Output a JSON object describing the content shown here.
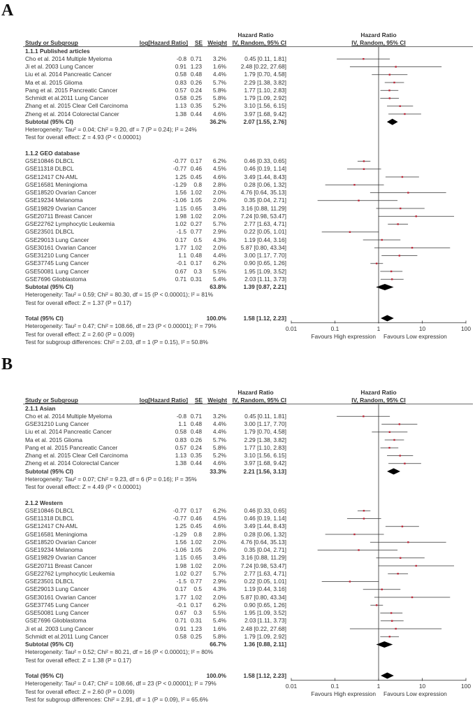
{
  "panels": [
    {
      "label": "A",
      "headers": {
        "study": "Study or Subgroup",
        "loghr": "log[Hazard Ratio]",
        "se": "SE",
        "weight": "Weight",
        "hr_top": "Hazard Ratio",
        "hr_sub": "IV, Random, 95% CI",
        "plot_top": "Hazard Ratio",
        "plot_sub": "IV, Random, 95% CI"
      },
      "groups": [
        {
          "title": "1.1.1 Published articles",
          "rows": [
            {
              "study": "Cho et al. 2014 Multiple Myeloma",
              "loghr": "-0.8",
              "se": "0.71",
              "weight": "3.2%",
              "ci": "0.45 [0.11, 1.81]"
            },
            {
              "study": "Ji et al. 2003 Lung Cancer",
              "loghr": "0.91",
              "se": "1.23",
              "weight": "1.6%",
              "ci": "2.48 [0.22, 27.68]"
            },
            {
              "study": "Liu et al. 2014 Pancreatic Cancer",
              "loghr": "0.58",
              "se": "0.48",
              "weight": "4.4%",
              "ci": "1.79 [0.70, 4.58]"
            },
            {
              "study": "Ma et al. 2015 Glioma",
              "loghr": "0.83",
              "se": "0.26",
              "weight": "5.7%",
              "ci": "2.29 [1.38, 3.82]"
            },
            {
              "study": "Pang et al. 2015 Pancreatic Cancer",
              "loghr": "0.57",
              "se": "0.24",
              "weight": "5.8%",
              "ci": "1.77 [1.10, 2.83]"
            },
            {
              "study": "Schmidt et al.2011 Lung Cancer",
              "loghr": "0.58",
              "se": "0.25",
              "weight": "5.8%",
              "ci": "1.79 [1.09, 2.92]"
            },
            {
              "study": "Zhang et al. 2015 Clear Cell Carcinoma",
              "loghr": "1.13",
              "se": "0.35",
              "weight": "5.2%",
              "ci": "3.10 [1.56, 6.15]"
            },
            {
              "study": "Zheng et al. 2014 Colorectal Cancer",
              "loghr": "1.38",
              "se": "0.44",
              "weight": "4.6%",
              "ci": "3.97 [1.68, 9.42]"
            }
          ],
          "subtotal": {
            "label": "Subtotal (95% CI)",
            "weight": "36.2%",
            "ci": "2.07 [1.55, 2.76]"
          },
          "heterogeneity": "Heterogeneity: Tau² = 0.04; Chi² = 9.20, df = 7 (P = 0.24); I² = 24%",
          "overall": "Test for overall effect: Z = 4.93 (P < 0.00001)"
        },
        {
          "title": "1.1.2 GEO database",
          "rows": [
            {
              "study": "GSE10846 DLBCL",
              "loghr": "-0.77",
              "se": "0.17",
              "weight": "6.2%",
              "ci": "0.46 [0.33, 0.65]"
            },
            {
              "study": "GSE11318 DLBCL",
              "loghr": "-0.77",
              "se": "0.46",
              "weight": "4.5%",
              "ci": "0.46 [0.19, 1.14]"
            },
            {
              "study": "GSE12417 CN-AML",
              "loghr": "1.25",
              "se": "0.45",
              "weight": "4.6%",
              "ci": "3.49 [1.44, 8.43]"
            },
            {
              "study": "GSE16581 Meningioma",
              "loghr": "-1.29",
              "se": "0.8",
              "weight": "2.8%",
              "ci": "0.28 [0.06, 1.32]"
            },
            {
              "study": "GSE18520 Ovarian Cancer",
              "loghr": "1.56",
              "se": "1.02",
              "weight": "2.0%",
              "ci": "4.76 [0.64, 35.13]"
            },
            {
              "study": "GSE19234 Melanoma",
              "loghr": "-1.06",
              "se": "1.05",
              "weight": "2.0%",
              "ci": "0.35 [0.04, 2.71]"
            },
            {
              "study": "GSE19829 Ovarian Cancer",
              "loghr": "1.15",
              "se": "0.65",
              "weight": "3.4%",
              "ci": "3.16 [0.88, 11.29]"
            },
            {
              "study": "GSE20711 Breast Cancer",
              "loghr": "1.98",
              "se": "1.02",
              "weight": "2.0%",
              "ci": "7.24 [0.98, 53.47]"
            },
            {
              "study": "GSE22762 Lymphocytic Leukemia",
              "loghr": "1.02",
              "se": "0.27",
              "weight": "5.7%",
              "ci": "2.77 [1.63, 4.71]"
            },
            {
              "study": "GSE23501 DLBCL",
              "loghr": "-1.5",
              "se": "0.77",
              "weight": "2.9%",
              "ci": "0.22 [0.05, 1.01]"
            },
            {
              "study": "GSE29013 Lung Cancer",
              "loghr": "0.17",
              "se": "0.5",
              "weight": "4.3%",
              "ci": "1.19 [0.44, 3.16]"
            },
            {
              "study": "GSE30161 Ovarian Cancer",
              "loghr": "1.77",
              "se": "1.02",
              "weight": "2.0%",
              "ci": "5.87 [0.80, 43.34]"
            },
            {
              "study": "GSE31210 Lung Cancer",
              "loghr": "1.1",
              "se": "0.48",
              "weight": "4.4%",
              "ci": "3.00 [1.17, 7.70]"
            },
            {
              "study": "GSE37745 Lung Cancer",
              "loghr": "-0.1",
              "se": "0.17",
              "weight": "6.2%",
              "ci": "0.90 [0.65, 1.26]"
            },
            {
              "study": "GSE50081 Lung Cancer",
              "loghr": "0.67",
              "se": "0.3",
              "weight": "5.5%",
              "ci": "1.95 [1.09, 3.52]"
            },
            {
              "study": "GSE7696 Glioblastoma",
              "loghr": "0.71",
              "se": "0.31",
              "weight": "5.4%",
              "ci": "2.03 [1.11, 3.73]"
            }
          ],
          "subtotal": {
            "label": "Subtotal (95% CI)",
            "weight": "63.8%",
            "ci": "1.39 [0.87, 2.21]"
          },
          "heterogeneity": "Heterogeneity: Tau² = 0.59; Chi² = 80.30, df = 15 (P < 0.00001); I² = 81%",
          "overall": "Test for overall effect: Z = 1.37 (P = 0.17)"
        }
      ],
      "total": {
        "label": "Total (95% CI)",
        "weight": "100.0%",
        "ci": "1.58 [1.12, 2.23]"
      },
      "total_heterogeneity": "Heterogeneity: Tau² = 0.47; Chi² = 108.66, df = 23 (P < 0.00001); I² = 79%",
      "total_overall": "Test for overall effect: Z = 2.60 (P = 0.009)",
      "subgroup_diff": "Test for subgroup differences: Chi² = 2.03, df = 1 (P = 0.15), I² = 50.8%",
      "axis": {
        "ticks": [
          "0.01",
          "0.1",
          "1",
          "10",
          "100"
        ],
        "scale": "log",
        "range": [
          0.01,
          100
        ],
        "left_label": "Favours High expression",
        "right_label": "Favours Low expression"
      }
    },
    {
      "label": "B",
      "headers": {
        "study": "Study or Subgroup",
        "loghr": "log[Hazard Ratio]",
        "se": "SE",
        "weight": "Weight",
        "hr_top": "Hazard Ratio",
        "hr_sub": "IV, Random, 95% CI",
        "plot_top": "Hazard Ratio",
        "plot_sub": "IV, Random, 95% CI"
      },
      "groups": [
        {
          "title": "2.1.1 Asian",
          "rows": [
            {
              "study": "Cho et al. 2014 Multiple Myeloma",
              "loghr": "-0.8",
              "se": "0.71",
              "weight": "3.2%",
              "ci": "0.45 [0.11, 1.81]"
            },
            {
              "study": "GSE31210 Lung Cancer",
              "loghr": "1.1",
              "se": "0.48",
              "weight": "4.4%",
              "ci": "3.00 [1.17, 7.70]"
            },
            {
              "study": "Liu et al. 2014 Pancreatic Cancer",
              "loghr": "0.58",
              "se": "0.48",
              "weight": "4.4%",
              "ci": "1.79 [0.70, 4.58]"
            },
            {
              "study": "Ma et al. 2015 Glioma",
              "loghr": "0.83",
              "se": "0.26",
              "weight": "5.7%",
              "ci": "2.29 [1.38, 3.82]"
            },
            {
              "study": "Pang et al. 2015 Pancreatic Cancer",
              "loghr": "0.57",
              "se": "0.24",
              "weight": "5.8%",
              "ci": "1.77 [1.10, 2.83]"
            },
            {
              "study": "Zhang et al. 2015 Clear Cell Carcinoma",
              "loghr": "1.13",
              "se": "0.35",
              "weight": "5.2%",
              "ci": "3.10 [1.56, 6.15]"
            },
            {
              "study": "Zheng et al. 2014 Colorectal Cancer",
              "loghr": "1.38",
              "se": "0.44",
              "weight": "4.6%",
              "ci": "3.97 [1.68, 9.42]"
            }
          ],
          "subtotal": {
            "label": "Subtotal (95% CI)",
            "weight": "33.3%",
            "ci": "2.21 [1.56, 3.13]"
          },
          "heterogeneity": "Heterogeneity: Tau² = 0.07; Chi² = 9.23, df = 6 (P = 0.16); I² = 35%",
          "overall": "Test for overall effect: Z = 4.49 (P < 0.00001)"
        },
        {
          "title": "2.1.2 Western",
          "rows": [
            {
              "study": "GSE10846 DLBCL",
              "loghr": "-0.77",
              "se": "0.17",
              "weight": "6.2%",
              "ci": "0.46 [0.33, 0.65]"
            },
            {
              "study": "GSE11318 DLBCL",
              "loghr": "-0.77",
              "se": "0.46",
              "weight": "4.5%",
              "ci": "0.46 [0.19, 1.14]"
            },
            {
              "study": "GSE12417 CN-AML",
              "loghr": "1.25",
              "se": "0.45",
              "weight": "4.6%",
              "ci": "3.49 [1.44, 8.43]"
            },
            {
              "study": "GSE16581 Meningioma",
              "loghr": "-1.29",
              "se": "0.8",
              "weight": "2.8%",
              "ci": "0.28 [0.06, 1.32]"
            },
            {
              "study": "GSE18520 Ovarian Cancer",
              "loghr": "1.56",
              "se": "1.02",
              "weight": "2.0%",
              "ci": "4.76 [0.64, 35.13]"
            },
            {
              "study": "GSE19234 Melanoma",
              "loghr": "-1.06",
              "se": "1.05",
              "weight": "2.0%",
              "ci": "0.35 [0.04, 2.71]"
            },
            {
              "study": "GSE19829 Ovarian Cancer",
              "loghr": "1.15",
              "se": "0.65",
              "weight": "3.4%",
              "ci": "3.16 [0.88, 11.29]"
            },
            {
              "study": "GSE20711 Breast Cancer",
              "loghr": "1.98",
              "se": "1.02",
              "weight": "2.0%",
              "ci": "7.24 [0.98, 53.47]"
            },
            {
              "study": "GSE22762 Lymphocytic Leukemia",
              "loghr": "1.02",
              "se": "0.27",
              "weight": "5.7%",
              "ci": "2.77 [1.63, 4.71]"
            },
            {
              "study": "GSE23501 DLBCL",
              "loghr": "-1.5",
              "se": "0.77",
              "weight": "2.9%",
              "ci": "0.22 [0.05, 1.01]"
            },
            {
              "study": "GSE29013 Lung Cancer",
              "loghr": "0.17",
              "se": "0.5",
              "weight": "4.3%",
              "ci": "1.19 [0.44, 3.16]"
            },
            {
              "study": "GSE30161 Ovarian Cancer",
              "loghr": "1.77",
              "se": "1.02",
              "weight": "2.0%",
              "ci": "5.87 [0.80, 43.34]"
            },
            {
              "study": "GSE37745 Lung Cancer",
              "loghr": "-0.1",
              "se": "0.17",
              "weight": "6.2%",
              "ci": "0.90 [0.65, 1.26]"
            },
            {
              "study": "GSE50081 Lung Cancer",
              "loghr": "0.67",
              "se": "0.3",
              "weight": "5.5%",
              "ci": "1.95 [1.09, 3.52]"
            },
            {
              "study": "GSE7696 Glioblastoma",
              "loghr": "0.71",
              "se": "0.31",
              "weight": "5.4%",
              "ci": "2.03 [1.11, 3.73]"
            },
            {
              "study": "Ji et al. 2003 Lung Cancer",
              "loghr": "0.91",
              "se": "1.23",
              "weight": "1.6%",
              "ci": "2.48 [0.22, 27.68]"
            },
            {
              "study": "Schmidt et al.2011 Lung Cancer",
              "loghr": "0.58",
              "se": "0.25",
              "weight": "5.8%",
              "ci": "1.79 [1.09, 2.92]"
            }
          ],
          "subtotal": {
            "label": "Subtotal (95% CI)",
            "weight": "66.7%",
            "ci": "1.36 [0.88, 2.11]"
          },
          "heterogeneity": "Heterogeneity: Tau² = 0.52; Chi² = 80.21, df = 16 (P < 0.00001); I² = 80%",
          "overall": "Test for overall effect: Z = 1.38 (P = 0.17)"
        }
      ],
      "total": {
        "label": "Total (95% CI)",
        "weight": "100.0%",
        "ci": "1.58 [1.12, 2.23]"
      },
      "total_heterogeneity": "Heterogeneity: Tau² = 0.47; Chi² = 108.66, df = 23 (P < 0.00001); I² = 79%",
      "total_overall": "Test for overall effect: Z = 2.60 (P = 0.009)",
      "subgroup_diff": "Test for subgroup differences: Chi² = 2.91, df = 1 (P = 0.09), I² = 65.6%",
      "axis": {
        "ticks": [
          "0.01",
          "0.1",
          "1",
          "10",
          "100"
        ],
        "scale": "log",
        "range": [
          0.01,
          100
        ],
        "left_label": "Favours High expression",
        "right_label": "Favours Low expression"
      }
    }
  ],
  "chart_data": [
    {
      "type": "forest",
      "panel": "A",
      "xscale": "log",
      "xlim": [
        0.01,
        100
      ],
      "reference_line": 1,
      "source": "panels.0"
    },
    {
      "type": "forest",
      "panel": "B",
      "xscale": "log",
      "xlim": [
        0.01,
        100
      ],
      "reference_line": 1,
      "source": "panels.1"
    }
  ],
  "colors": {
    "point": "#c0283a",
    "line": "#333333",
    "diamond": "#000000"
  }
}
